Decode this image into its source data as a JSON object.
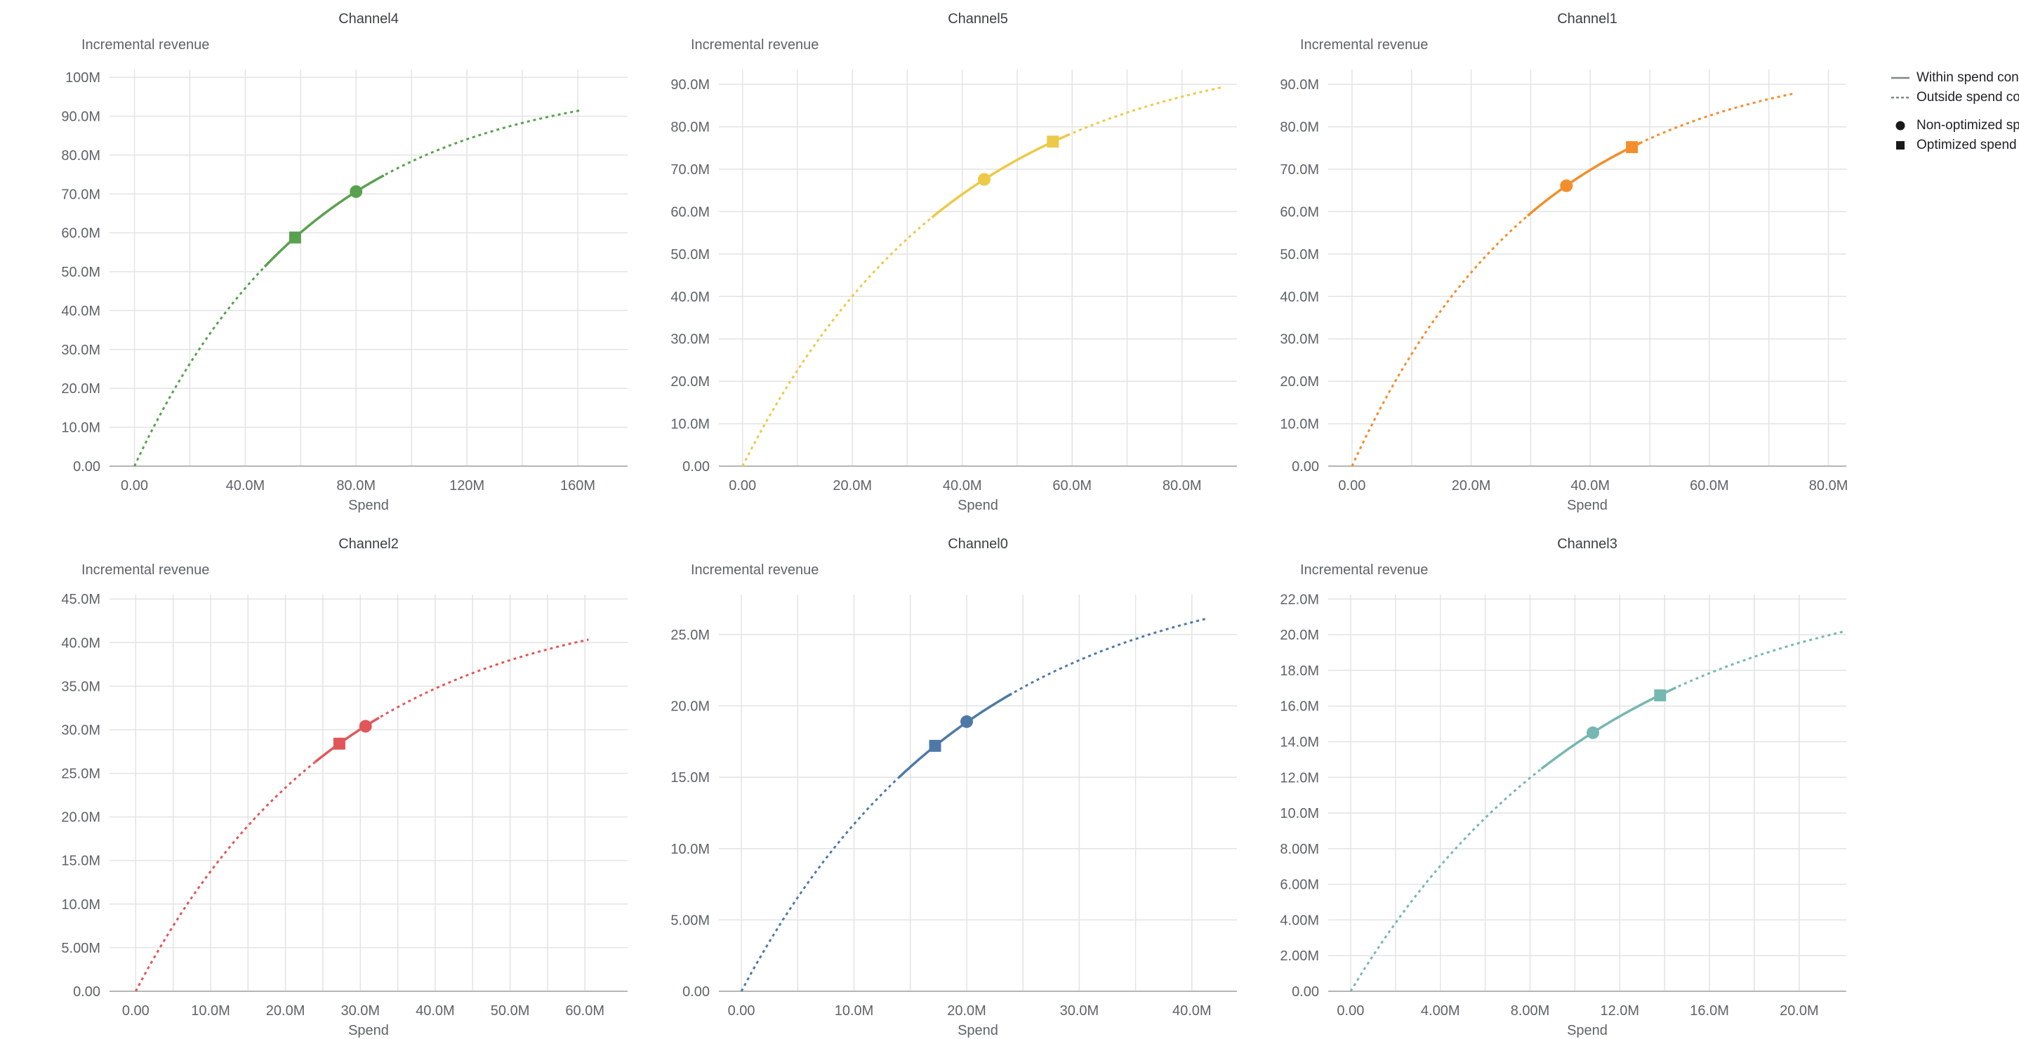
{
  "page": {
    "background": "#ffffff"
  },
  "legend": {
    "position": "top-right",
    "symbol_color": "#80868b",
    "marker_color": "#1a1a1a",
    "line_items": [
      {
        "symbol": "solid-line",
        "label": "Within spend constraint"
      },
      {
        "symbol": "dashed-line",
        "label": "Outside spend constraint"
      }
    ],
    "marker_items": [
      {
        "symbol": "circle",
        "label": "Non-optimized spend"
      },
      {
        "symbol": "square",
        "label": "Optimized spend"
      }
    ]
  },
  "chart_data": [
    {
      "type": "line",
      "title": "Channel4",
      "ylabel": "Incremental revenue",
      "xlabel": "Spend",
      "color": "#59A14F",
      "value_unit": "millions",
      "grid": true,
      "xlim": [
        -9,
        178
      ],
      "ylim": [
        0,
        102
      ],
      "xticks": [
        0,
        40,
        80,
        120,
        160
      ],
      "xtick_labels": [
        "0.00",
        "40.0M",
        "80.0M",
        "120M",
        "160M"
      ],
      "yticks": [
        0,
        10,
        20,
        30,
        40,
        50,
        60,
        70,
        80,
        90,
        100
      ],
      "ytick_labels": [
        "0.00",
        "10.0M",
        "20.0M",
        "30.0M",
        "40.0M",
        "50.0M",
        "60.0M",
        "70.0M",
        "80.0M",
        "90.0M",
        "100M"
      ],
      "curve": {
        "model": "y = A*(1-exp(-k*x))",
        "A": 100,
        "k": 0.0153,
        "x_start": 0,
        "x_end": 161
      },
      "solid_range": [
        47,
        90
      ],
      "points": {
        "optimized": {
          "x": 58,
          "y": 58.8
        },
        "non_optimized": {
          "x": 80,
          "y": 70.6
        }
      }
    },
    {
      "type": "line",
      "title": "Channel5",
      "ylabel": "Incremental revenue",
      "xlabel": "Spend",
      "color": "#EDC948",
      "value_unit": "millions",
      "grid": true,
      "xlim": [
        -4.3,
        90
      ],
      "ylim": [
        0,
        93.5
      ],
      "xticks": [
        0,
        20,
        40,
        60,
        80
      ],
      "xtick_labels": [
        "0.00",
        "20.0M",
        "40.0M",
        "60.0M",
        "80.0M"
      ],
      "yticks": [
        0,
        10,
        20,
        30,
        40,
        50,
        60,
        70,
        80,
        90
      ],
      "ytick_labels": [
        "0.00",
        "10.0M",
        "20.0M",
        "30.0M",
        "40.0M",
        "50.0M",
        "60.0M",
        "70.0M",
        "80.0M",
        "90.0M"
      ],
      "curve": {
        "model": "y = A*(1-exp(-k*x))",
        "A": 100,
        "k": 0.0256,
        "x_start": 0,
        "x_end": 87.5
      },
      "solid_range": [
        34.5,
        59.5
      ],
      "points": {
        "non_optimized": {
          "x": 44,
          "y": 67.6
        },
        "optimized": {
          "x": 56.5,
          "y": 76.5
        }
      }
    },
    {
      "type": "line",
      "title": "Channel1",
      "ylabel": "Incremental revenue",
      "xlabel": "Spend",
      "color": "#F28E2B",
      "value_unit": "millions",
      "grid": true,
      "xlim": [
        -4,
        83
      ],
      "ylim": [
        0,
        93.5
      ],
      "xticks": [
        0,
        20,
        40,
        60,
        80
      ],
      "xtick_labels": [
        "0.00",
        "20.0M",
        "40.0M",
        "60.0M",
        "80.0M"
      ],
      "yticks": [
        0,
        10,
        20,
        30,
        40,
        50,
        60,
        70,
        80,
        90
      ],
      "ytick_labels": [
        "0.00",
        "10.0M",
        "20.0M",
        "30.0M",
        "40.0M",
        "50.0M",
        "60.0M",
        "70.0M",
        "80.0M",
        "90.0M"
      ],
      "curve": {
        "model": "y = A*(1-exp(-k*x))",
        "A": 97,
        "k": 0.0318,
        "x_start": 0,
        "x_end": 74
      },
      "solid_range": [
        29.5,
        48.5
      ],
      "points": {
        "non_optimized": {
          "x": 36,
          "y": 66.1
        },
        "optimized": {
          "x": 47,
          "y": 75.2
        }
      }
    },
    {
      "type": "line",
      "title": "Channel2",
      "ylabel": "Incremental revenue",
      "xlabel": "Spend",
      "color": "#E15759",
      "value_unit": "millions",
      "grid": true,
      "xlim": [
        -3.5,
        65.7
      ],
      "ylim": [
        0,
        45.5
      ],
      "xticks": [
        0,
        10,
        20,
        30,
        40,
        50,
        60
      ],
      "xtick_labels": [
        "0.00",
        "10.0M",
        "20.0M",
        "30.0M",
        "40.0M",
        "50.0M",
        "60.0M"
      ],
      "yticks": [
        0,
        5,
        10,
        15,
        20,
        25,
        30,
        35,
        40,
        45
      ],
      "ytick_labels": [
        "0.00",
        "5.00M",
        "10.0M",
        "15.0M",
        "20.0M",
        "25.0M",
        "30.0M",
        "35.0M",
        "40.0M",
        "45.0M"
      ],
      "curve": {
        "model": "y = A*(1-exp(-k*x))",
        "A": 45.5,
        "k": 0.036,
        "x_start": 0,
        "x_end": 60.5
      },
      "solid_range": [
        24,
        32.5
      ],
      "points": {
        "optimized": {
          "x": 27.2,
          "y": 28.4
        },
        "non_optimized": {
          "x": 30.7,
          "y": 30.4
        }
      }
    },
    {
      "type": "line",
      "title": "Channel0",
      "ylabel": "Incremental revenue",
      "xlabel": "Spend",
      "color": "#4E79A7",
      "value_unit": "millions",
      "grid": true,
      "xlim": [
        -2,
        44
      ],
      "ylim": [
        0,
        27.8
      ],
      "xticks": [
        0,
        10,
        20,
        30,
        40
      ],
      "xtick_labels": [
        "0.00",
        "10.0M",
        "20.0M",
        "30.0M",
        "40.0M"
      ],
      "yticks": [
        0,
        5,
        10,
        15,
        20,
        25
      ],
      "ytick_labels": [
        "0.00",
        "5.00M",
        "10.0M",
        "15.0M",
        "20.0M",
        "25.0M"
      ],
      "curve": {
        "model": "y = A*(1-exp(-k*x))",
        "A": 30,
        "k": 0.0495,
        "x_start": 0,
        "x_end": 41.2
      },
      "solid_range": [
        14,
        24
      ],
      "points": {
        "optimized": {
          "x": 17.2,
          "y": 17.2
        },
        "non_optimized": {
          "x": 20,
          "y": 18.9
        }
      }
    },
    {
      "type": "line",
      "title": "Channel3",
      "ylabel": "Incremental revenue",
      "xlabel": "Spend",
      "color": "#76B7B2",
      "value_unit": "millions",
      "grid": true,
      "xlim": [
        -1,
        22.1
      ],
      "ylim": [
        0,
        22.25
      ],
      "xticks": [
        0,
        4,
        8,
        12,
        16,
        20
      ],
      "xtick_labels": [
        "0.00",
        "4.00M",
        "8.00M",
        "12.0M",
        "16.0M",
        "20.0M"
      ],
      "yticks": [
        0,
        2,
        4,
        6,
        8,
        10,
        12,
        14,
        16,
        18,
        20,
        22
      ],
      "ytick_labels": [
        "0.00",
        "2.00M",
        "4.00M",
        "6.00M",
        "8.00M",
        "10.0M",
        "12.0M",
        "14.0M",
        "16.0M",
        "18.0M",
        "20.0M",
        "22.0M"
      ],
      "curve": {
        "model": "y = A*(1-exp(-k*x))",
        "A": 23.5,
        "k": 0.089,
        "x_start": 0,
        "x_end": 22.0
      },
      "solid_range": [
        8.5,
        14.5
      ],
      "points": {
        "non_optimized": {
          "x": 10.8,
          "y": 14.5
        },
        "optimized": {
          "x": 13.8,
          "y": 16.6
        }
      }
    }
  ]
}
